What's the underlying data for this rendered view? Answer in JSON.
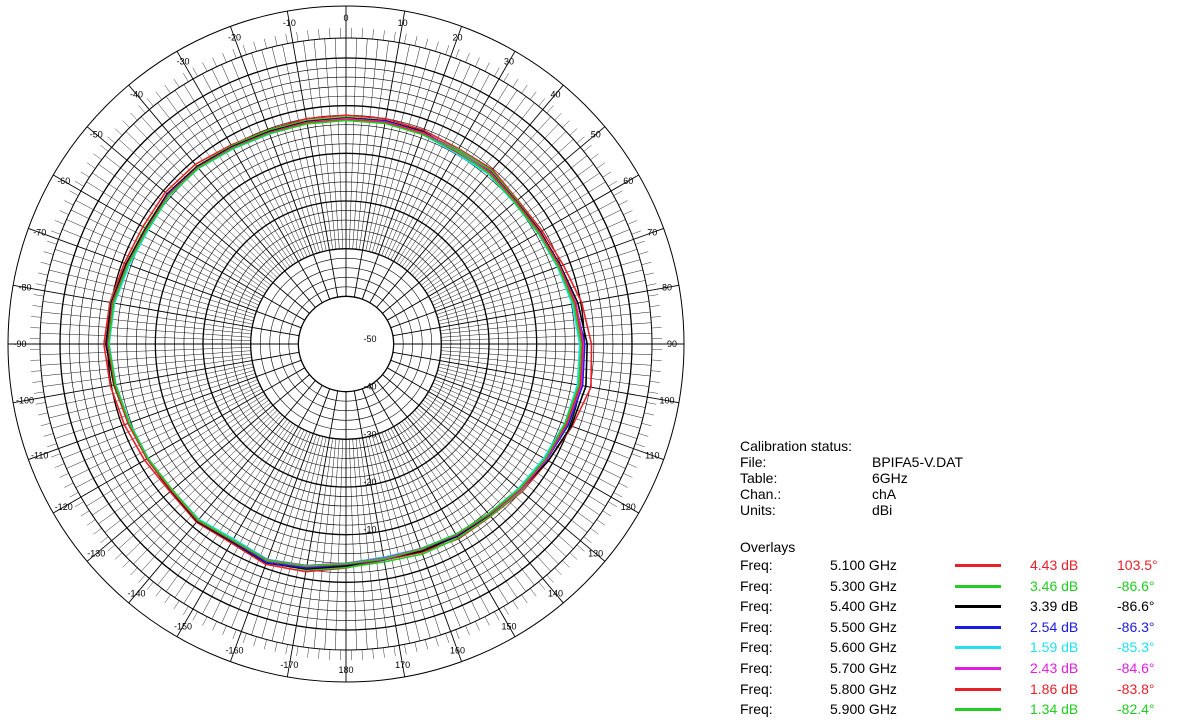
{
  "chart_data": {
    "type": "polar-line",
    "angle_labels": [
      "0",
      "10",
      "20",
      "30",
      "40",
      "50",
      "60",
      "70",
      "80",
      "90",
      "100",
      "110",
      "120",
      "130",
      "140",
      "150",
      "160",
      "170",
      "180",
      "-170",
      "-160",
      "-150",
      "-140",
      "-130",
      "-120",
      "-110",
      "-100",
      "-90",
      "-80",
      "-70",
      "-60",
      "-50",
      "-40",
      "-30",
      "-20",
      "-10"
    ],
    "radial_labels": [
      "-10",
      "-20",
      "-30",
      "-40",
      "-50"
    ],
    "r_range_db": [
      -50,
      10
    ],
    "series": [
      {
        "freq": "5.100 GHz",
        "gain": "4.43 dB",
        "angle": "103.5°",
        "color": "#e8202a",
        "r": [
          -2.0,
          -2.0,
          -2.3,
          -2.7,
          -2.2,
          -3.0,
          -2.5,
          -1.5,
          0.2,
          1.5,
          2.2,
          0.5,
          -1.0,
          -1.8,
          -2.8,
          -2.8,
          -3.5,
          -4.0,
          -3.0,
          -1.5,
          -0.8,
          -1.8,
          -1.2,
          -1.8,
          -1.2,
          -0.5,
          0.2,
          0.8,
          0.3,
          -0.5,
          -0.8,
          -0.5,
          -0.8,
          -1.8,
          -2.2,
          -2.0
        ]
      },
      {
        "freq": "5.300 GHz",
        "gain": "3.46 dB",
        "angle": "-86.6°",
        "color": "#22cc22",
        "r": [
          -2.4,
          -2.4,
          -2.9,
          -2.9,
          -2.5,
          -3.2,
          -2.9,
          -2.4,
          -1.1,
          -0.1,
          0.3,
          -0.3,
          -1.4,
          -2.0,
          -2.9,
          -3.0,
          -3.1,
          -3.6,
          -3.1,
          -1.9,
          -1.3,
          -2.3,
          -1.5,
          -2.1,
          -1.8,
          -1.4,
          -0.5,
          0.2,
          0.1,
          -0.9,
          -1.3,
          -1.0,
          -1.3,
          -2.0,
          -2.3,
          -2.4
        ]
      },
      {
        "freq": "5.400 GHz",
        "gain": "3.39 dB",
        "angle": "-86.6°",
        "color": "#000000",
        "r": [
          -2.6,
          -2.4,
          -2.6,
          -3.4,
          -2.8,
          -3.4,
          -2.9,
          -2.1,
          -0.6,
          0.6,
          1.1,
          0.3,
          -1.0,
          -2.3,
          -3.2,
          -3.4,
          -3.7,
          -4.2,
          -3.4,
          -2.1,
          -1.1,
          -2.1,
          -1.4,
          -2.1,
          -1.8,
          -1.4,
          -0.6,
          0.4,
          0.0,
          -0.9,
          -1.5,
          -1.0,
          -1.4,
          -2.2,
          -2.6,
          -2.6
        ]
      },
      {
        "freq": "5.500 GHz",
        "gain": "2.54 dB",
        "angle": "-86.3°",
        "color": "#1a1ae6",
        "r": [
          -2.8,
          -2.5,
          -2.9,
          -3.6,
          -3.1,
          -3.7,
          -3.3,
          -2.5,
          -1.1,
          0.1,
          0.4,
          -0.4,
          -1.4,
          -2.4,
          -3.3,
          -3.6,
          -4.1,
          -4.0,
          -3.7,
          -2.3,
          -1.2,
          -2.3,
          -1.6,
          -2.2,
          -2.0,
          -1.5,
          -0.8,
          0.1,
          -0.4,
          -1.3,
          -2.0,
          -1.2,
          -1.6,
          -2.4,
          -2.8,
          -2.8
        ]
      },
      {
        "freq": "5.600 GHz",
        "gain": "1.59 dB",
        "angle": "-85.3°",
        "color": "#22e0f0",
        "r": [
          -3.0,
          -2.9,
          -3.2,
          -3.8,
          -3.5,
          -3.9,
          -3.5,
          -2.8,
          -1.8,
          -1.0,
          -0.7,
          -1.2,
          -2.1,
          -2.8,
          -3.5,
          -3.9,
          -4.3,
          -4.6,
          -4.0,
          -2.8,
          -1.9,
          -2.8,
          -2.0,
          -2.4,
          -2.1,
          -1.7,
          -1.0,
          -0.3,
          -0.7,
          -1.6,
          -2.1,
          -1.6,
          -1.9,
          -2.7,
          -3.1,
          -3.0
        ]
      },
      {
        "freq": "5.700 GHz",
        "gain": "2.43 dB",
        "angle": "-84.6°",
        "color": "#e020e0",
        "r": [
          -2.7,
          -2.7,
          -2.8,
          -3.2,
          -2.9,
          -3.5,
          -3.1,
          -2.3,
          -1.0,
          -0.2,
          0.1,
          -0.7,
          -1.5,
          -2.2,
          -3.3,
          -3.7,
          -4.3,
          -4.4,
          -4.0,
          -2.8,
          -1.8,
          -2.5,
          -1.6,
          -2.3,
          -1.9,
          -1.4,
          -0.8,
          -0.1,
          -0.2,
          -1.2,
          -1.7,
          -1.3,
          -1.6,
          -2.4,
          -2.8,
          -2.8
        ]
      },
      {
        "freq": "5.800 GHz",
        "gain": "1.86 dB",
        "angle": "-83.8°",
        "color": "#e8202a",
        "r": [
          -2.9,
          -2.8,
          -3.0,
          -3.5,
          -3.1,
          -3.6,
          -3.2,
          -2.4,
          -1.2,
          -0.4,
          -0.1,
          -0.8,
          -1.7,
          -2.4,
          -3.4,
          -3.8,
          -4.1,
          -4.1,
          -3.8,
          -2.6,
          -1.6,
          -2.4,
          -1.6,
          -2.2,
          -1.8,
          -1.3,
          -0.7,
          0.0,
          -0.3,
          -1.2,
          -1.8,
          -1.4,
          -1.7,
          -2.5,
          -2.9,
          -2.9
        ]
      },
      {
        "freq": "5.900 GHz",
        "gain": "1.34 dB",
        "angle": "-82.4°",
        "color": "#22cc22",
        "r": [
          -3.1,
          -3.0,
          -3.2,
          -3.3,
          -3.3,
          -3.8,
          -3.4,
          -2.6,
          -1.5,
          -0.7,
          -0.4,
          -1.1,
          -1.8,
          -2.6,
          -3.5,
          -3.9,
          -4.2,
          -4.2,
          -3.9,
          -2.7,
          -1.7,
          -2.5,
          -1.8,
          -2.4,
          -2.0,
          -1.6,
          -0.9,
          -0.2,
          -0.5,
          -1.3,
          -1.9,
          -1.5,
          -1.8,
          -2.6,
          -3.0,
          -3.1
        ]
      }
    ]
  },
  "calibration": {
    "title": "Calibration status:",
    "rows": [
      {
        "key": "File:",
        "value": "BPIFA5-V.DAT"
      },
      {
        "key": "Table:",
        "value": "6GHz"
      },
      {
        "key": "Chan.:",
        "value": "chA"
      },
      {
        "key": "Units:",
        "value": "dBi"
      }
    ]
  },
  "overlays": {
    "title": "Overlays",
    "freq_label": "Freq:"
  }
}
